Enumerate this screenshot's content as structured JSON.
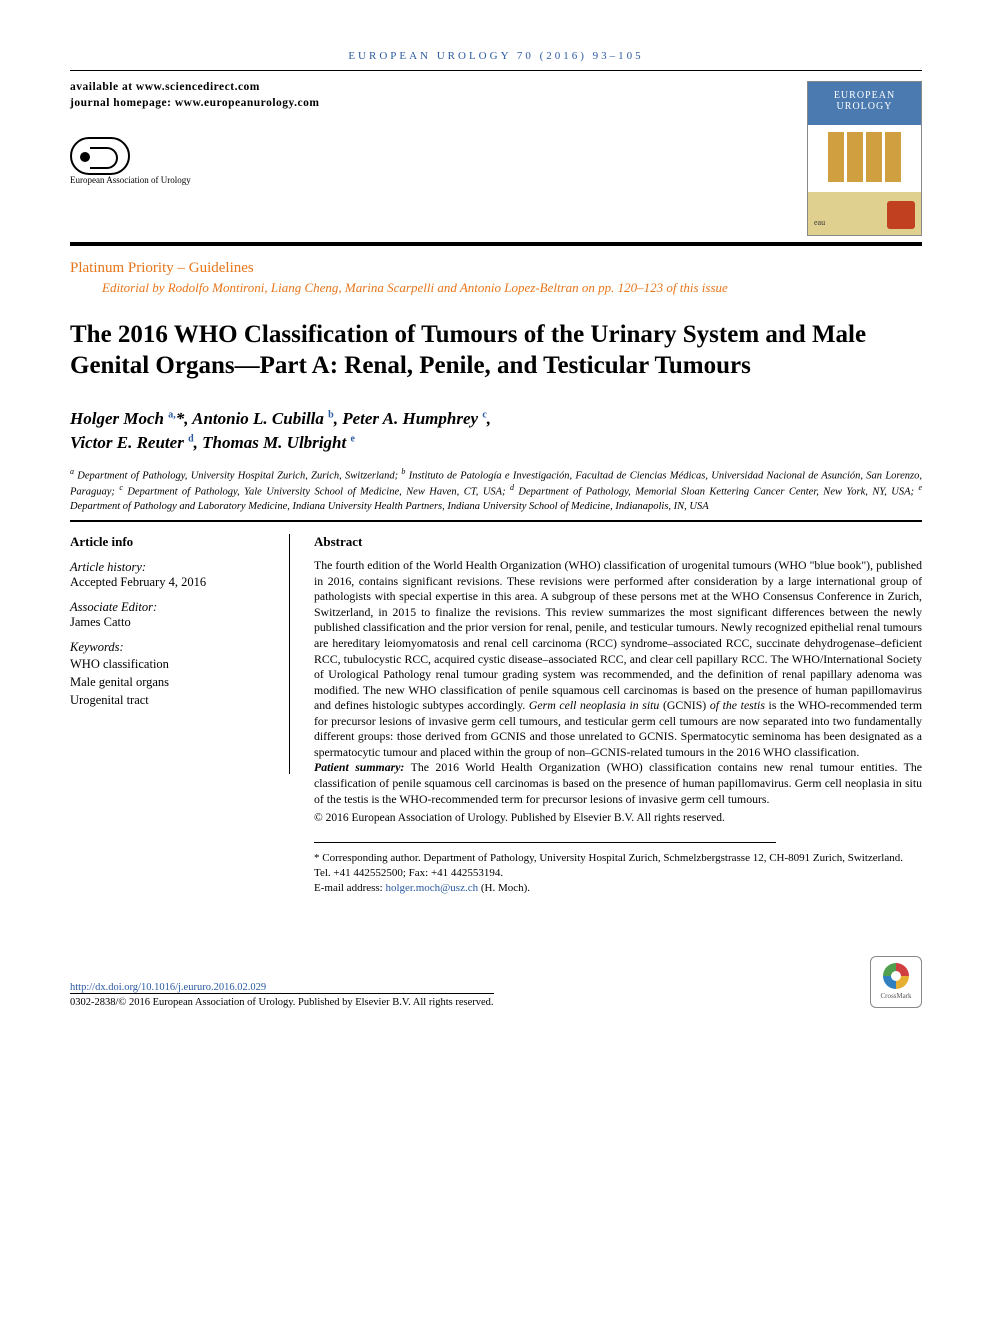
{
  "running_head": "EUROPEAN UROLOGY 70 (2016) 93–105",
  "masthead": {
    "available_at": "available at www.sciencedirect.com",
    "homepage": "journal homepage: www.europeanurology.com",
    "eau_org": "European Association of Urology",
    "cover_title": "EUROPEAN UROLOGY"
  },
  "section": {
    "label": "Platinum Priority – Guidelines",
    "editorial": "Editorial by Rodolfo Montironi, Liang Cheng, Marina Scarpelli and Antonio Lopez-Beltran on pp. 120–123 of this issue"
  },
  "title": "The 2016 WHO Classification of Tumours of the Urinary System and Male Genital Organs—Part A: Renal, Penile, and Testicular Tumours",
  "authors_html": "Holger Moch <sup>a,</sup>*, Antonio L. Cubilla <sup>b</sup>, Peter A. Humphrey <sup>c</sup>,<br>Victor E. Reuter <sup>d</sup>, Thomas M. Ulbright <sup>e</sup>",
  "affiliations_html": "<sup>a</sup> Department of Pathology, University Hospital Zurich, Zurich, Switzerland; <sup>b</sup> Instituto de Patología e Investigación, Facultad de Ciencias Médicas, Universidad Nacional de Asunción, San Lorenzo, Paraguay; <sup>c</sup> Department of Pathology, Yale University School of Medicine, New Haven, CT, USA; <sup>d</sup> Department of Pathology, Memorial Sloan Kettering Cancer Center, New York, NY, USA; <sup>e</sup> Department of Pathology and Laboratory Medicine, Indiana University Health Partners, Indiana University School of Medicine, Indianapolis, IN, USA",
  "article_info": {
    "heading": "Article info",
    "history_label": "Article history:",
    "history_value": "Accepted February 4, 2016",
    "assoc_editor_label": "Associate Editor:",
    "assoc_editor_value": "James Catto",
    "keywords_label": "Keywords:",
    "keywords": [
      "WHO classification",
      "Male genital organs",
      "Urogenital tract"
    ]
  },
  "abstract": {
    "heading": "Abstract",
    "body_html": "The fourth edition of the World Health Organization (WHO) classification of urogenital tumours (WHO \"blue book\"), published in 2016, contains significant revisions. These revisions were performed after consideration by a large international group of pathologists with special expertise in this area. A subgroup of these persons met at the WHO Consensus Conference in Zurich, Switzerland, in 2015 to finalize the revisions. This review summarizes the most significant differences between the newly published classification and the prior version for renal, penile, and testicular tumours. Newly recognized epithelial renal tumours are hereditary leiomyomatosis and renal cell carcinoma (RCC) syndrome–associated RCC, succinate dehydrogenase–deficient RCC, tubulocystic RCC, acquired cystic disease–associated RCC, and clear cell papillary RCC. The WHO/International Society of Urological Pathology renal tumour grading system was recommended, and the definition of renal papillary adenoma was modified. The new WHO classification of penile squamous cell carcinomas is based on the presence of human papillomavirus and defines histologic subtypes accordingly. <em>Germ cell neoplasia in situ</em> (GCNIS) <em>of the testis</em> is the WHO-recommended term for precursor lesions of invasive germ cell tumours, and testicular germ cell tumours are now separated into two fundamentally different groups: those derived from GCNIS and those unrelated to GCNIS. Spermatocytic seminoma has been designated as a spermatocytic tumour and placed within the group of non–GCNIS-related tumours in the 2016 WHO classification.",
    "patient_summary_label": "Patient summary:",
    "patient_summary": "The 2016 World Health Organization (WHO) classification contains new renal tumour entities. The classification of penile squamous cell carcinomas is based on the presence of human papillomavirus. Germ cell neoplasia in situ of the testis is the WHO-recommended term for precursor lesions of invasive germ cell tumours.",
    "copyright": "© 2016 European Association of Urology. Published by Elsevier B.V. All rights reserved."
  },
  "corresponding": {
    "text": "* Corresponding author. Department of Pathology, University Hospital Zurich, Schmelzbergstrasse 12, CH-8091 Zurich, Switzerland. Tel. +41 442552500; Fax: +41 442553194.",
    "email_label": "E-mail address:",
    "email": "holger.moch@usz.ch",
    "email_name": "(H. Moch)."
  },
  "footer": {
    "doi": "http://dx.doi.org/10.1016/j.eururo.2016.02.029",
    "issn_line": "0302-2838/© 2016 European Association of Urology. Published by Elsevier B.V. All rights reserved.",
    "crossmark": "CrossMark"
  },
  "colors": {
    "link": "#2a5aa0",
    "accent": "#e8751a"
  }
}
